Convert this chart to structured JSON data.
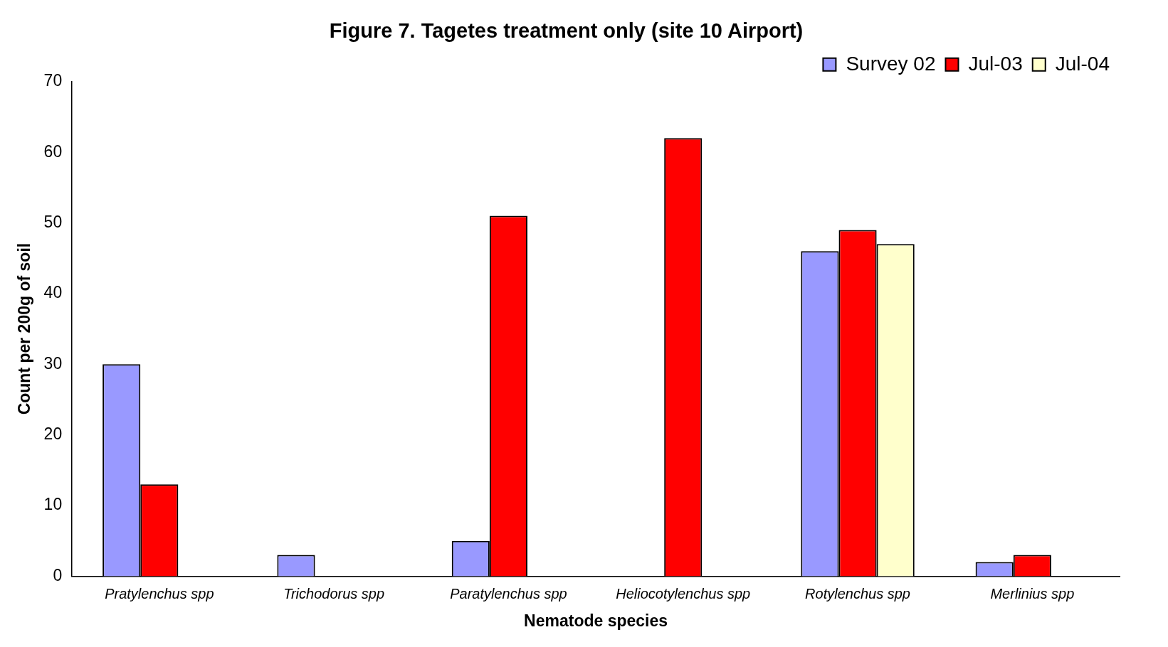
{
  "chart_data": {
    "type": "bar",
    "title": "Figure 7. Tagetes treatment only (site 10 Airport)",
    "xlabel": "Nematode species",
    "ylabel": "Count per 200g of soil",
    "categories": [
      "Pratylenchus spp",
      "Trichodorus spp",
      "Paratylenchus spp",
      "Heliocotylenchus spp",
      "Rotylenchus spp",
      "Merlinius spp"
    ],
    "series": [
      {
        "name": "Survey 02",
        "color": "#9999ff",
        "values": [
          30,
          3,
          5,
          null,
          46,
          2
        ]
      },
      {
        "name": "Jul-03",
        "color": "#ff0000",
        "values": [
          13,
          null,
          51,
          62,
          49,
          3
        ]
      },
      {
        "name": "Jul-04",
        "color": "#ffffcc",
        "values": [
          null,
          null,
          null,
          null,
          47,
          null
        ]
      }
    ],
    "ylim": [
      0,
      70
    ],
    "yticks": [
      0,
      10,
      20,
      30,
      40,
      50,
      60,
      70
    ],
    "grid": false,
    "legend": "top right"
  }
}
